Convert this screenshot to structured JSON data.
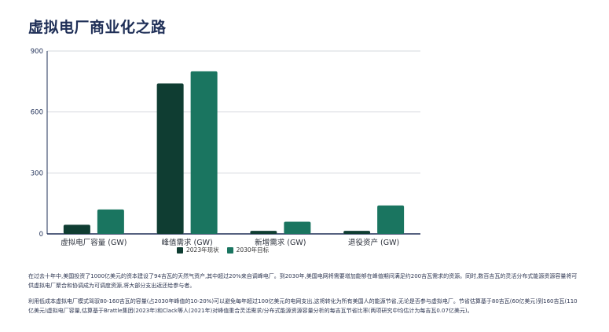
{
  "page": {
    "title": "虚拟电厂商业化之路",
    "paragraphs": [
      "在过去十年中,美国投资了1000亿美元的资本建设了94吉瓦的天然气资产,其中超过20%来自调峰电厂。到2030年,美国电网将需要增加能够在峰值期间满足约200吉瓦需求的资源。同时,数百吉瓦的灵活分布式能源资源容量将可供虚拟电厂聚合和协调成为可调度资源,将大部分支出返还给参与者。",
      "利用低成本虚拟电厂模式驾驭80-160吉瓦的容量(占2030年峰值的10-20%)可以避免每年超过100亿美元的电网支出,这将转化为所有美国人的能源节省,无论是否参与虚拟电厂。节省估算基于80吉瓦(60亿美元)到160吉瓦(110亿美元)虚拟电厂容量,估算基于Brattle集团(2023年)和Clack等人(2021年)对峰值重合灵活需求/分布式能源资源容量分析的每吉瓦节省比率(两项研究中均估计为每吉瓦0.07亿美元)。"
    ]
  },
  "colors": {
    "series_2023": "#0f3d32",
    "series_2030": "#1a7560",
    "axis": "#1f2f57",
    "grid": "#d6d9de"
  },
  "chart_data": {
    "type": "bar",
    "categories": [
      "虚拟电厂容量 (GW)",
      "峰值需求 (GW)",
      "新增需求 (GW)",
      "退役资产 (GW)"
    ],
    "series": [
      {
        "name": "2023年现状",
        "values": [
          45,
          740,
          15,
          15
        ]
      },
      {
        "name": "2030年目标",
        "values": [
          120,
          800,
          60,
          140
        ]
      }
    ],
    "ylim": [
      0,
      900
    ],
    "yticks": [
      0,
      300,
      600,
      900
    ],
    "grid": true,
    "legend": "bottom-center"
  }
}
